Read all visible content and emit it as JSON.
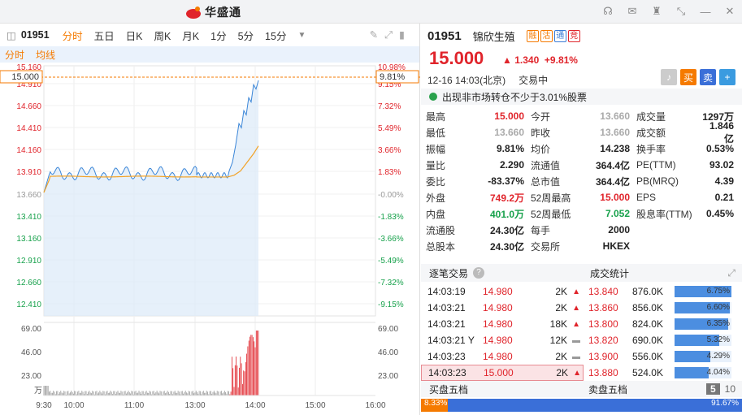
{
  "app": {
    "name": "华盛通"
  },
  "toolbar": {
    "code": "01951",
    "tabs": [
      "分时",
      "五日",
      "日K",
      "周K",
      "月K",
      "1分",
      "5分",
      "15分"
    ]
  },
  "sub": {
    "a": "分时",
    "b": "均线"
  },
  "chart": {
    "price_ticks": [
      "15.160",
      "14.910",
      "14.660",
      "14.410",
      "14.160",
      "13.910",
      "13.660",
      "13.410",
      "13.160",
      "12.910",
      "12.660",
      "12.410"
    ],
    "pct_ticks": [
      "10.98%",
      "9.15%",
      "7.32%",
      "5.49%",
      "3.66%",
      "1.83%",
      "-0.00%",
      "-1.83%",
      "-3.66%",
      "-5.49%",
      "-7.32%",
      "-9.15%"
    ],
    "current_label": "15.000",
    "current_pct": "9.81%",
    "vol_ticks": [
      "69.00",
      "46.00",
      "23.00"
    ],
    "vol_unit": "万",
    "time_ticks": [
      "9:30",
      "10:00",
      "11:00",
      "13:00",
      "14:00",
      "15:00",
      "16:00"
    ]
  },
  "chart_data": {
    "type": "line",
    "x": [
      "9:30",
      "10:00",
      "11:00",
      "13:00",
      "14:00"
    ],
    "series": [
      {
        "name": "分时",
        "values": [
          13.7,
          13.94,
          13.9,
          13.92,
          15.0
        ]
      },
      {
        "name": "均线",
        "values": [
          13.7,
          13.88,
          13.9,
          13.9,
          14.24
        ]
      }
    ],
    "ylim": [
      12.41,
      15.16
    ]
  },
  "quote": {
    "code": "01951",
    "name": "锦欣生殖",
    "badges": [
      "融",
      "沽",
      "通",
      "竞"
    ],
    "price": "15.000",
    "change": "1.340",
    "pct": "+9.81%",
    "date": "12-16",
    "time": "14:03(北京)",
    "status": "交易中"
  },
  "buttons": {
    "buy": "买",
    "sell": "卖",
    "add": "+"
  },
  "notice": "出现非市场转仓不少于3.01%股票",
  "stats": [
    [
      "最高",
      "15.000",
      "今开",
      "13.660",
      "成交量",
      "1297万"
    ],
    [
      "最低",
      "13.660",
      "昨收",
      "13.660",
      "成交额",
      "1.846亿"
    ],
    [
      "振幅",
      "9.81%",
      "均价",
      "14.238",
      "换手率",
      "0.53%"
    ],
    [
      "量比",
      "2.290",
      "流通值",
      "364.4亿",
      "PE(TTM)",
      "93.02"
    ],
    [
      "委比",
      "-83.37%",
      "总市值",
      "364.4亿",
      "PB(MRQ)",
      "4.39"
    ],
    [
      "外盘",
      "749.2万",
      "52周最高",
      "15.000",
      "EPS",
      "0.21"
    ],
    [
      "内盘",
      "401.0万",
      "52周最低",
      "7.052",
      "股息率(TTM)",
      "0.45%"
    ],
    [
      "流通股",
      "24.30亿",
      "每手",
      "2000",
      "",
      ""
    ],
    [
      "总股本",
      "24.30亿",
      "交易所",
      "HKEX",
      "",
      ""
    ]
  ],
  "sections": {
    "trades": "逐笔交易",
    "dist": "成交统计",
    "buy5": "买盘五档",
    "sell5": "卖盘五档",
    "n5": "5",
    "n10": "10"
  },
  "trades": [
    [
      "14:03:19",
      "14.980",
      "2K"
    ],
    [
      "14:03:21",
      "14.980",
      "2K"
    ],
    [
      "14:03:21",
      "14.980",
      "18K"
    ],
    [
      "14:03:21 Y",
      "14.980",
      "12K"
    ],
    [
      "14:03:23",
      "14.980",
      "2K"
    ],
    [
      "14:03:23",
      "15.000",
      "2K"
    ]
  ],
  "dist": [
    [
      "13.840",
      "876.0K",
      "6.75%"
    ],
    [
      "13.860",
      "856.0K",
      "6.60%"
    ],
    [
      "13.800",
      "824.0K",
      "6.35%"
    ],
    [
      "13.820",
      "690.0K",
      "5.32%"
    ],
    [
      "13.900",
      "556.0K",
      "4.29%"
    ],
    [
      "13.880",
      "524.0K",
      "4.04%"
    ]
  ],
  "ratio": {
    "buy": "8.33%",
    "sell": "91.67%"
  },
  "colors": {
    "up": "#e0242b",
    "down": "#17a14b",
    "accent": "#f57a00",
    "bar": "#4c8ee0"
  }
}
